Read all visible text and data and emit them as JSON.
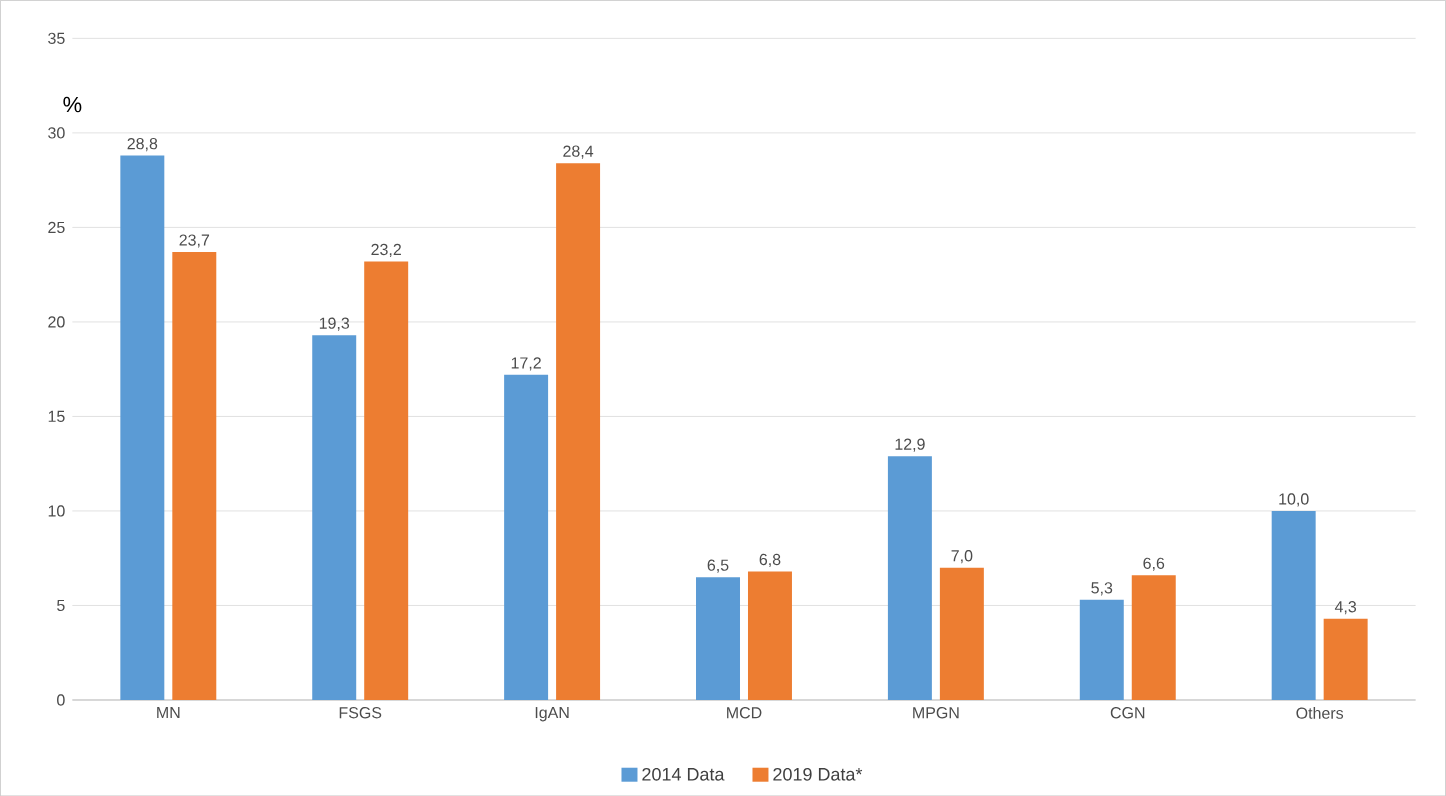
{
  "chart_data": {
    "type": "bar",
    "ylabel": "%",
    "categories": [
      "MN",
      "FSGS",
      "IgAN",
      "MCD",
      "MPGN",
      "CGN",
      "Others"
    ],
    "series": [
      {
        "name": "2014 Data",
        "color": "#5b9bd5",
        "values": [
          28.8,
          19.3,
          17.2,
          6.5,
          12.9,
          5.3,
          10.0
        ],
        "value_labels": [
          "28,8",
          "19,3",
          "17,2",
          "6,5",
          "12,9",
          "5,3",
          "10,0"
        ]
      },
      {
        "name": "2019 Data*",
        "color": "#ed7d31",
        "values": [
          23.7,
          23.2,
          28.4,
          6.8,
          7.0,
          6.6,
          4.3
        ],
        "value_labels": [
          "23,7",
          "23,2",
          "28,4",
          "6,8",
          "7,0",
          "6,6",
          "4,3"
        ]
      }
    ],
    "ylim": [
      0,
      35
    ],
    "yticks": [
      0,
      5,
      10,
      15,
      20,
      25,
      30,
      35
    ],
    "grid": "y",
    "legend": "bottom"
  }
}
